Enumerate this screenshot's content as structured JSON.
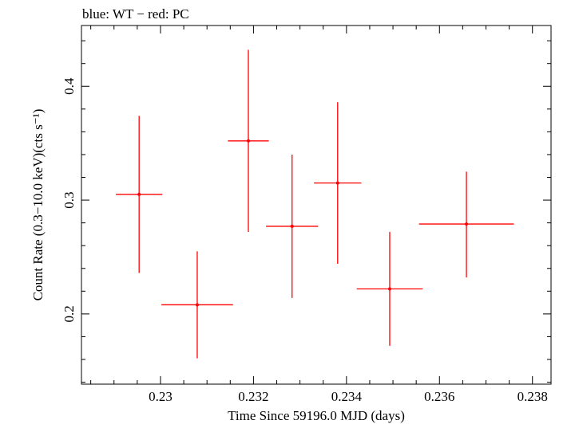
{
  "chart_data": {
    "type": "scatter",
    "title": "blue: WT − red: PC",
    "xlabel": "Time Since 59196.0 MJD (days)",
    "ylabel": "Count Rate (0.3−10.0 keV)(cts s⁻¹)",
    "xlim": [
      0.2283,
      0.2384
    ],
    "ylim": [
      0.1383,
      0.4534
    ],
    "x_ticks": [
      0.23,
      0.232,
      0.234,
      0.236,
      0.238
    ],
    "x_tick_labels": [
      "0.23",
      "0.232",
      "0.234",
      "0.236",
      "0.238"
    ],
    "y_ticks": [
      0.2,
      0.3,
      0.4
    ],
    "y_tick_labels": [
      "0.2",
      "0.3",
      "0.4"
    ],
    "grid": false,
    "series": [
      {
        "color": "#ff0000",
        "points": [
          {
            "x": 0.22954,
            "xerr_lo": 0.0005,
            "xerr_hi": 0.0005,
            "y": 0.305,
            "yerr_lo": 0.069,
            "yerr_hi": 0.069
          },
          {
            "x": 0.23079,
            "xerr_lo": 0.00077,
            "xerr_hi": 0.00077,
            "y": 0.208,
            "yerr_lo": 0.047,
            "yerr_hi": 0.047
          },
          {
            "x": 0.23189,
            "xerr_lo": 0.00044,
            "xerr_hi": 0.00044,
            "y": 0.352,
            "yerr_lo": 0.08,
            "yerr_hi": 0.08
          },
          {
            "x": 0.23283,
            "xerr_lo": 0.00056,
            "xerr_hi": 0.00056,
            "y": 0.277,
            "yerr_lo": 0.063,
            "yerr_hi": 0.063
          },
          {
            "x": 0.23381,
            "xerr_lo": 0.00051,
            "xerr_hi": 0.00051,
            "y": 0.315,
            "yerr_lo": 0.071,
            "yerr_hi": 0.071
          },
          {
            "x": 0.23493,
            "xerr_lo": 0.00071,
            "xerr_hi": 0.00071,
            "y": 0.222,
            "yerr_lo": 0.05,
            "yerr_hi": 0.05
          },
          {
            "x": 0.23658,
            "xerr_lo": 0.00102,
            "xerr_hi": 0.00102,
            "y": 0.279,
            "yerr_lo": 0.047,
            "yerr_hi": 0.046
          }
        ]
      }
    ]
  }
}
